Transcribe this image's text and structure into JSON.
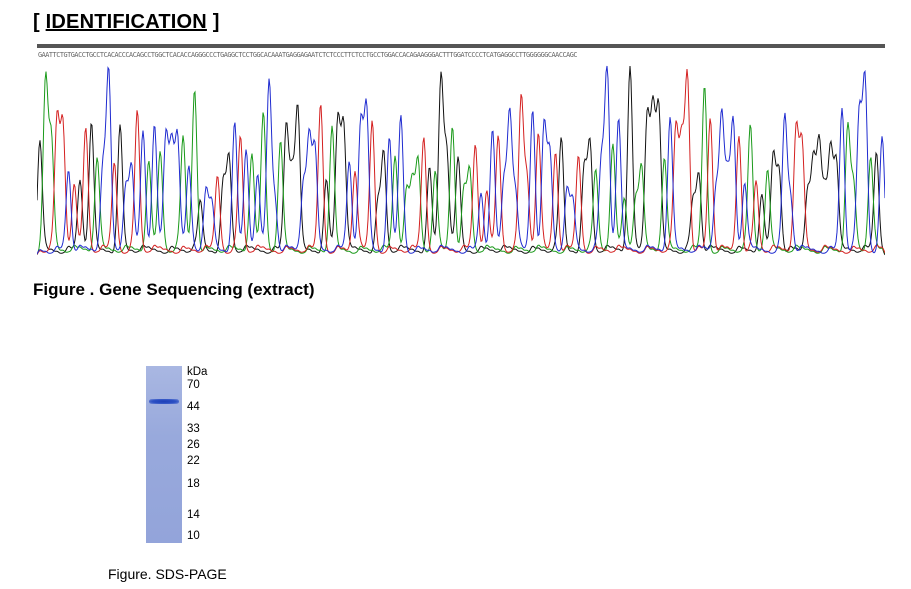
{
  "header": {
    "open_bracket": "[ ",
    "title": "IDENTIFICATION",
    "close_bracket": " ]"
  },
  "chromatogram": {
    "sequence": "GAATTCTGTGACCTGCCTCACACCCACAGCCTGGCTCACACCAGGGCCCTGAGGCTCCTGGCACAAATGAGGAGAATCTCTCCCTTCTCCTGCCTGGACCACAGAAGGGACTTTGGATCCCCTCATGAGGCCTTGGGGGGCAACCAGC",
    "base_colors": {
      "A": "#1a9a1a",
      "C": "#1f2bd0",
      "G": "#111111",
      "T": "#d42020"
    },
    "caption": "Figure . Gene Sequencing (extract)"
  },
  "sds_page": {
    "unit": "kDa",
    "markers": [
      "70",
      "44",
      "33",
      "26",
      "22",
      "18",
      "14",
      "10"
    ],
    "caption": "Figure. SDS-PAGE"
  }
}
